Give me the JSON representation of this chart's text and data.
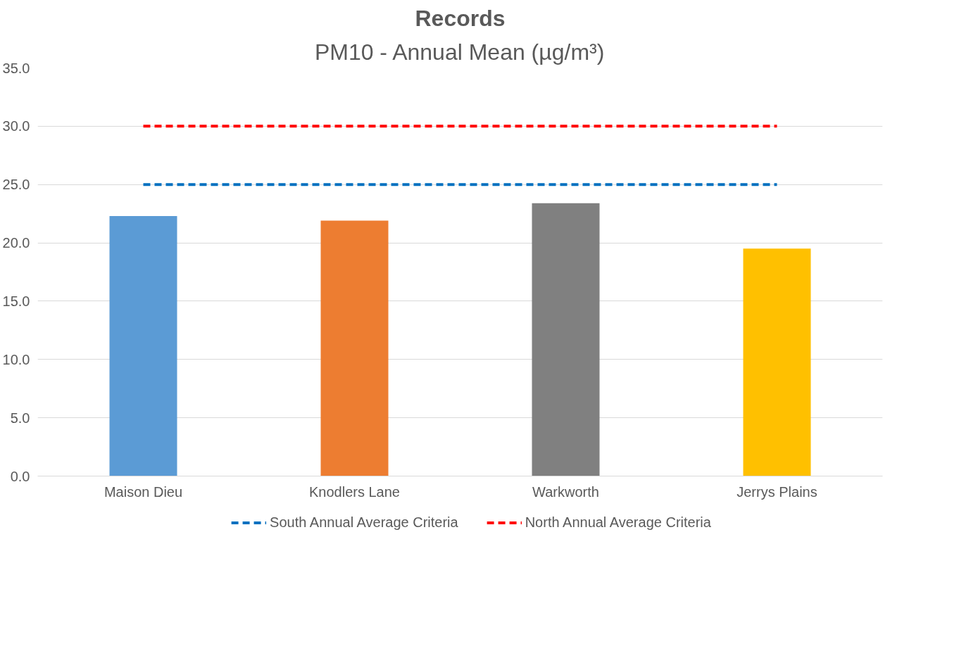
{
  "chart_data": {
    "type": "bar",
    "title": "Records",
    "subtitle": "PM10 - Annual Mean (µg/m³)",
    "categories": [
      "Maison Dieu",
      "Knodlers Lane",
      "Warkworth",
      "Jerrys Plains"
    ],
    "series": [
      {
        "colors": [
          "#5b9bd5",
          "#ed7d31",
          "#808080",
          "#ffc000"
        ],
        "values": [
          22.3,
          21.9,
          23.4,
          19.5
        ]
      },
      {
        "type": "line",
        "name": "South Annual Average Criteria",
        "color": "#0070c0",
        "line_style": "dashed",
        "values": [
          25,
          25,
          25,
          25
        ]
      },
      {
        "type": "line",
        "name": "North Annual Average Criteria",
        "color": "#ff0000",
        "line_style": "dashed",
        "values": [
          30,
          30,
          30,
          30
        ]
      }
    ],
    "ylim": [
      0,
      35
    ],
    "yticks": [
      {
        "value": 0,
        "label": "0.0"
      },
      {
        "value": 5,
        "label": "5.0"
      },
      {
        "value": 10,
        "label": "10.0"
      },
      {
        "value": 15,
        "label": "15.0"
      },
      {
        "value": 20,
        "label": "20.0"
      },
      {
        "value": 25,
        "label": "25.0"
      },
      {
        "value": 30,
        "label": "30.0"
      },
      {
        "value": 35,
        "label": "35.0"
      }
    ],
    "grid": "y",
    "legend": "bottom"
  }
}
